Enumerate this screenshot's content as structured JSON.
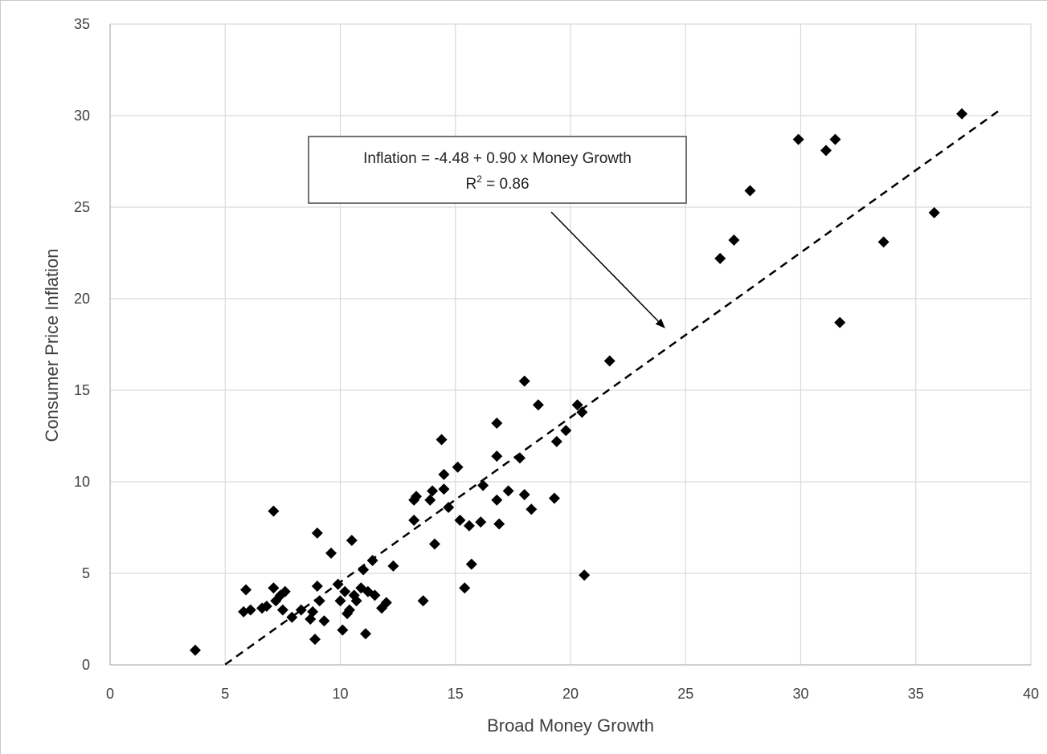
{
  "chart_data": {
    "type": "scatter",
    "title": "",
    "xlabel": "Broad Money Growth",
    "ylabel": "Consumer Price Inflation",
    "xlim": [
      0,
      40
    ],
    "ylim": [
      0,
      35
    ],
    "x_ticks": [
      "0",
      "5",
      "10",
      "15",
      "20",
      "25",
      "30",
      "35",
      "40"
    ],
    "y_ticks": [
      "0",
      "5",
      "10",
      "15",
      "20",
      "25",
      "30",
      "35"
    ],
    "grid": true,
    "marker": "diamond",
    "colors": {
      "points": "#000000",
      "grid": "#d9d9d9",
      "axis": "#bfbfbf",
      "trend": "#000000"
    },
    "points": [
      [
        3.7,
        0.8
      ],
      [
        5.8,
        2.9
      ],
      [
        5.9,
        4.1
      ],
      [
        6.1,
        3.0
      ],
      [
        6.6,
        3.1
      ],
      [
        6.8,
        3.2
      ],
      [
        7.1,
        4.2
      ],
      [
        7.1,
        8.4
      ],
      [
        7.2,
        3.5
      ],
      [
        7.4,
        3.8
      ],
      [
        7.5,
        3.0
      ],
      [
        7.6,
        4.0
      ],
      [
        7.9,
        2.6
      ],
      [
        8.3,
        3.0
      ],
      [
        8.7,
        2.5
      ],
      [
        8.8,
        2.9
      ],
      [
        8.9,
        1.4
      ],
      [
        9.0,
        4.3
      ],
      [
        9.0,
        7.2
      ],
      [
        9.1,
        3.5
      ],
      [
        9.3,
        2.4
      ],
      [
        9.6,
        6.1
      ],
      [
        9.9,
        4.4
      ],
      [
        10.0,
        3.5
      ],
      [
        10.1,
        1.9
      ],
      [
        10.2,
        4.0
      ],
      [
        10.3,
        2.8
      ],
      [
        10.4,
        3.0
      ],
      [
        10.5,
        6.8
      ],
      [
        10.6,
        3.8
      ],
      [
        10.7,
        3.5
      ],
      [
        10.9,
        4.2
      ],
      [
        11.0,
        5.2
      ],
      [
        11.1,
        1.7
      ],
      [
        11.2,
        4.0
      ],
      [
        11.4,
        5.7
      ],
      [
        11.5,
        3.8
      ],
      [
        11.8,
        3.1
      ],
      [
        12.0,
        3.4
      ],
      [
        12.3,
        5.4
      ],
      [
        13.2,
        7.9
      ],
      [
        13.2,
        9.0
      ],
      [
        13.3,
        9.2
      ],
      [
        13.6,
        3.5
      ],
      [
        13.9,
        9.0
      ],
      [
        14.0,
        9.5
      ],
      [
        14.1,
        6.6
      ],
      [
        14.4,
        12.3
      ],
      [
        14.5,
        9.6
      ],
      [
        14.5,
        10.4
      ],
      [
        14.7,
        8.6
      ],
      [
        15.1,
        10.8
      ],
      [
        15.2,
        7.9
      ],
      [
        15.4,
        4.2
      ],
      [
        15.6,
        7.6
      ],
      [
        15.7,
        5.5
      ],
      [
        16.1,
        7.8
      ],
      [
        16.2,
        9.8
      ],
      [
        16.8,
        9.0
      ],
      [
        16.8,
        11.4
      ],
      [
        16.8,
        13.2
      ],
      [
        16.9,
        7.7
      ],
      [
        17.3,
        9.5
      ],
      [
        17.8,
        11.3
      ],
      [
        18.0,
        15.5
      ],
      [
        18.0,
        9.3
      ],
      [
        18.3,
        8.5
      ],
      [
        18.6,
        14.2
      ],
      [
        19.3,
        9.1
      ],
      [
        19.4,
        12.2
      ],
      [
        19.8,
        12.8
      ],
      [
        20.3,
        14.2
      ],
      [
        20.5,
        13.8
      ],
      [
        20.6,
        4.9
      ],
      [
        21.7,
        16.6
      ],
      [
        26.5,
        22.2
      ],
      [
        27.1,
        23.2
      ],
      [
        27.8,
        25.9
      ],
      [
        29.9,
        28.7
      ],
      [
        31.1,
        28.1
      ],
      [
        31.5,
        28.7
      ],
      [
        31.7,
        18.7
      ],
      [
        33.6,
        23.1
      ],
      [
        35.8,
        24.7
      ],
      [
        37.0,
        30.1
      ]
    ],
    "trendline": {
      "intercept": -4.48,
      "slope": 0.9,
      "style": "dashed",
      "x_range": [
        5.0,
        38.7
      ]
    },
    "annotation": {
      "line1": "Inflation = -4.48 + 0.90 x Money Growth",
      "r_label": "R",
      "r_exponent": "2",
      "r_value": " = 0.86"
    }
  }
}
